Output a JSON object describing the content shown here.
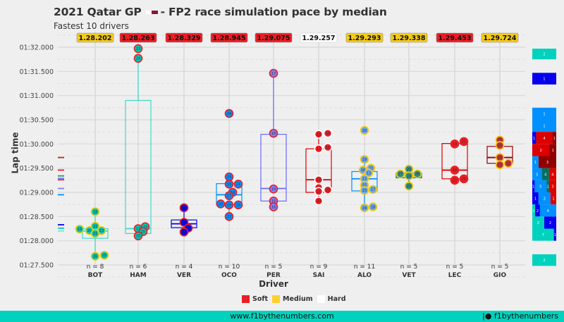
{
  "chart_data": {
    "type": "box",
    "title": "2021 Qatar GP",
    "title_suffix": "- FP2 race simulation pace by median",
    "subtitle": "Fastest 10 drivers",
    "xlabel": "Driver",
    "ylabel": "Lap time",
    "ylim": [
      87.5,
      92.0
    ],
    "yticks": [
      {
        "value": 92.0,
        "label": "01:32.000"
      },
      {
        "value": 91.5,
        "label": "01:31.500"
      },
      {
        "value": 91.0,
        "label": "01:31.000"
      },
      {
        "value": 90.5,
        "label": "01:30.500"
      },
      {
        "value": 90.0,
        "label": "01:30.000"
      },
      {
        "value": 89.5,
        "label": "01:29.500"
      },
      {
        "value": 89.0,
        "label": "01:29.000"
      },
      {
        "value": 88.5,
        "label": "01:28.500"
      },
      {
        "value": 88.0,
        "label": "01:28.000"
      },
      {
        "value": 87.5,
        "label": "01:27.500"
      }
    ],
    "legend": [
      {
        "label": "Soft",
        "color": "#ed1c24"
      },
      {
        "label": "Medium",
        "color": "#ffd12e"
      },
      {
        "label": "Hard",
        "color": "#ffffff"
      }
    ],
    "legend_position": "bottom",
    "drivers": [
      {
        "name": "BOT",
        "n": "n = 8",
        "median_label": "1.28.202",
        "compound": "Medium",
        "team_color": "#00d2be",
        "box": {
          "q1": 88.05,
          "median": 88.2,
          "q3": 88.25,
          "lo": 87.7,
          "hi": 88.6
        },
        "laps": [
          {
            "lap": "18",
            "t": 88.6,
            "dx": 0
          },
          {
            "lap": "19",
            "t": 88.24,
            "dx": -22
          },
          {
            "lap": "20",
            "t": 88.21,
            "dx": -8
          },
          {
            "lap": "22",
            "t": 88.3,
            "dx": 0
          },
          {
            "lap": "23",
            "t": 88.21,
            "dx": 9
          },
          {
            "lap": "21",
            "t": 88.15,
            "dx": 0
          },
          {
            "lap": "26",
            "t": 87.68,
            "dx": 0
          },
          {
            "lap": "25",
            "t": 87.7,
            "dx": 13
          }
        ]
      },
      {
        "name": "HAM",
        "n": "n = 6",
        "median_label": "1.28.263",
        "compound": "Soft",
        "team_color": "#00d2be",
        "box": {
          "q1": 88.15,
          "median": 88.25,
          "q3": 90.9,
          "lo": 88.08,
          "hi": 91.75
        },
        "laps": [
          {
            "lap": "23",
            "t": 91.97,
            "dx": 0
          },
          {
            "lap": "24",
            "t": 91.77,
            "dx": 0
          },
          {
            "lap": "22",
            "t": 88.25,
            "dx": 0
          },
          {
            "lap": "19",
            "t": 88.29,
            "dx": 10
          },
          {
            "lap": "25",
            "t": 88.19,
            "dx": 7
          },
          {
            "lap": "20",
            "t": 88.1,
            "dx": 0
          }
        ]
      },
      {
        "name": "VER",
        "n": "n = 4",
        "median_label": "1.28.329",
        "compound": "Soft",
        "team_color": "#0600ef",
        "box": {
          "q1": 88.27,
          "median": 88.35,
          "q3": 88.43,
          "lo": 88.18,
          "hi": 88.68
        },
        "laps": [
          {
            "lap": "19",
            "t": 88.68,
            "dx": 0
          },
          {
            "lap": "15",
            "t": 88.38,
            "dx": 0
          },
          {
            "lap": "25",
            "t": 88.26,
            "dx": 6
          },
          {
            "lap": "18",
            "t": 88.18,
            "dx": 0
          }
        ]
      },
      {
        "name": "OCO",
        "n": "n = 10",
        "median_label": "1.28.945",
        "compound": "Soft",
        "team_color": "#0090ff",
        "box": {
          "q1": 88.74,
          "median": 88.95,
          "q3": 89.18,
          "lo": 88.5,
          "hi": 89.3
        },
        "laps": [
          {
            "lap": "24",
            "t": 90.63,
            "dx": 0
          },
          {
            "lap": "23",
            "t": 89.32,
            "dx": 0
          },
          {
            "lap": "15",
            "t": 89.17,
            "dx": 0
          },
          {
            "lap": "21",
            "t": 89.17,
            "dx": 13
          },
          {
            "lap": "18",
            "t": 89.0,
            "dx": 5
          },
          {
            "lap": "17",
            "t": 88.93,
            "dx": 0
          },
          {
            "lap": "20",
            "t": 88.76,
            "dx": -12
          },
          {
            "lap": "19",
            "t": 88.74,
            "dx": 0
          },
          {
            "lap": "16",
            "t": 88.74,
            "dx": 13
          },
          {
            "lap": "22",
            "t": 88.5,
            "dx": 0
          }
        ]
      },
      {
        "name": "PER",
        "n": "n = 5",
        "median_label": "1.29.075",
        "compound": "Soft",
        "team_color": "#0600ef",
        "box": {
          "q1": 88.82,
          "median": 89.08,
          "q3": 90.2,
          "lo": 88.7,
          "hi": 91.46
        },
        "laps": [
          {
            "lap": "17",
            "t": 91.46,
            "dx": 0
          },
          {
            "lap": "18",
            "t": 90.22,
            "dx": 0
          },
          {
            "lap": "19",
            "t": 89.07,
            "dx": 0
          },
          {
            "lap": "15",
            "t": 88.82,
            "dx": 0
          },
          {
            "lap": "16",
            "t": 88.7,
            "dx": 0
          }
        ]
      },
      {
        "name": "SAI",
        "n": "n = 9",
        "median_label": "1.29.257",
        "compound": "Hard",
        "team_color": "#dc0000",
        "box": {
          "q1": 89.0,
          "median": 89.26,
          "q3": 89.9,
          "lo": 88.82,
          "hi": 90.2
        },
        "laps": [
          {
            "lap": "18",
            "t": 90.2,
            "dx": 0
          },
          {
            "lap": "16",
            "t": 90.22,
            "dx": 13
          },
          {
            "lap": "17",
            "t": 89.9,
            "dx": 0
          },
          {
            "lap": "19",
            "t": 89.93,
            "dx": 13
          },
          {
            "lap": "22",
            "t": 89.26,
            "dx": 0
          },
          {
            "lap": "24",
            "t": 89.1,
            "dx": 0
          },
          {
            "lap": "21",
            "t": 89.02,
            "dx": 0
          },
          {
            "lap": "23",
            "t": 89.05,
            "dx": 13
          },
          {
            "lap": "20",
            "t": 88.82,
            "dx": 0
          }
        ]
      },
      {
        "name": "ALO",
        "n": "n = 11",
        "median_label": "1.29.293",
        "compound": "Medium",
        "team_color": "#0090ff",
        "box": {
          "q1": 89.03,
          "median": 89.28,
          "q3": 89.43,
          "lo": 88.68,
          "hi": 89.68
        },
        "laps": [
          {
            "lap": "20",
            "t": 90.28,
            "dx": 0
          },
          {
            "lap": "19",
            "t": 89.68,
            "dx": 0
          },
          {
            "lap": "22",
            "t": 89.5,
            "dx": 9
          },
          {
            "lap": "16",
            "t": 89.46,
            "dx": -2
          },
          {
            "lap": "13",
            "t": 89.4,
            "dx": 6
          },
          {
            "lap": "12",
            "t": 89.28,
            "dx": 0
          },
          {
            "lap": "15",
            "t": 89.15,
            "dx": 0
          },
          {
            "lap": "23",
            "t": 89.04,
            "dx": 0
          },
          {
            "lap": "17",
            "t": 89.06,
            "dx": 12
          },
          {
            "lap": "24",
            "t": 88.68,
            "dx": 0
          },
          {
            "lap": "18",
            "t": 88.7,
            "dx": 12
          }
        ]
      },
      {
        "name": "VET",
        "n": "n = 5",
        "median_label": "1.29.338",
        "compound": "Medium",
        "team_color": "#006f62",
        "box": {
          "q1": 89.3,
          "median": 89.34,
          "q3": 89.4,
          "lo": 89.13,
          "hi": 89.48
        },
        "laps": [
          {
            "lap": "25",
            "t": 89.48,
            "dx": 0
          },
          {
            "lap": "27",
            "t": 89.38,
            "dx": -12
          },
          {
            "lap": "24",
            "t": 89.34,
            "dx": 0
          },
          {
            "lap": "26",
            "t": 89.38,
            "dx": 12
          },
          {
            "lap": "23",
            "t": 89.13,
            "dx": 0
          }
        ]
      },
      {
        "name": "LEC",
        "n": "n = 5",
        "median_label": "1.29.453",
        "compound": "Soft",
        "team_color": "#dc0000",
        "box": {
          "q1": 89.28,
          "median": 89.46,
          "q3": 90.01,
          "lo": 89.22,
          "hi": 90.05
        },
        "laps": [
          {
            "lap": "19",
            "t": 90.0,
            "dx": 0
          },
          {
            "lap": "21",
            "t": 90.05,
            "dx": 13
          },
          {
            "lap": "18",
            "t": 89.46,
            "dx": 0
          },
          {
            "lap": "22",
            "t": 89.25,
            "dx": 0
          },
          {
            "lap": "20",
            "t": 89.28,
            "dx": 13
          }
        ]
      },
      {
        "name": "GIO",
        "n": "n = 5",
        "median_label": "1.29.724",
        "compound": "Medium",
        "team_color": "#900000",
        "box": {
          "q1": 89.6,
          "median": 89.72,
          "q3": 89.95,
          "lo": 89.55,
          "hi": 90.08
        },
        "laps": [
          {
            "lap": "19",
            "t": 90.08,
            "dx": 0
          },
          {
            "lap": "21",
            "t": 89.97,
            "dx": 0
          },
          {
            "lap": "20",
            "t": 89.72,
            "dx": 0
          },
          {
            "lap": "23",
            "t": 89.57,
            "dx": 0
          },
          {
            "lap": "22",
            "t": 89.6,
            "dx": 12
          }
        ]
      }
    ],
    "side_markers": [
      {
        "t": 89.72,
        "color": "#c02030"
      },
      {
        "t": 89.46,
        "color": "#ed1c24"
      },
      {
        "t": 89.34,
        "color": "#358c75"
      },
      {
        "t": 89.29,
        "color": "#7f7fff"
      },
      {
        "t": 89.26,
        "color": "#ed1c24"
      },
      {
        "t": 89.08,
        "color": "#7f7fff"
      },
      {
        "t": 88.95,
        "color": "#0090ff"
      },
      {
        "t": 88.33,
        "color": "#0600ef"
      },
      {
        "t": 88.26,
        "color": "#00d2be"
      },
      {
        "t": 88.2,
        "color": "#7fe8de"
      }
    ],
    "histogram": [
      {
        "t0": 91.97,
        "t1": 91.75,
        "cells": [
          {
            "w": 1,
            "color": "#00d2be",
            "label": "2"
          }
        ]
      },
      {
        "t0": 91.47,
        "t1": 91.23,
        "cells": [
          {
            "w": 1,
            "color": "#0600ef",
            "label": "1"
          }
        ]
      },
      {
        "t0": 90.75,
        "t1": 90.5,
        "cells": [
          {
            "w": 1,
            "color": "#0090ff",
            "label": "1"
          }
        ]
      },
      {
        "t0": 90.5,
        "t1": 90.25,
        "cells": [
          {
            "w": 1,
            "color": "#0090ff",
            "label": "1"
          }
        ]
      },
      {
        "t0": 90.25,
        "t1": 90.0,
        "cells": [
          {
            "w": 0.16,
            "color": "#0600ef",
            "label": "1"
          },
          {
            "w": 0.68,
            "color": "#dc0000",
            "label": "4"
          },
          {
            "w": 0.16,
            "color": "#900000",
            "label": "1"
          }
        ]
      },
      {
        "t0": 90.0,
        "t1": 89.75,
        "cells": [
          {
            "w": 0.72,
            "color": "#dc0000",
            "label": "2"
          },
          {
            "w": 0.28,
            "color": "#900000",
            "label": "1"
          }
        ]
      },
      {
        "t0": 89.75,
        "t1": 89.5,
        "cells": [
          {
            "w": 0.26,
            "color": "#0090ff",
            "label": "1"
          },
          {
            "w": 0.74,
            "color": "#900000",
            "label": "3"
          }
        ]
      },
      {
        "t0": 89.5,
        "t1": 89.25,
        "cells": [
          {
            "w": 0.4,
            "color": "#0090ff",
            "label": "5"
          },
          {
            "w": 0.3,
            "color": "#006f62",
            "label": "4"
          },
          {
            "w": 0.3,
            "color": "#dc0000",
            "label": "4"
          }
        ]
      },
      {
        "t0": 89.25,
        "t1": 89.0,
        "cells": [
          {
            "w": 0.1,
            "color": "#0600ef",
            "label": "1"
          },
          {
            "w": 0.5,
            "color": "#0090ff",
            "label": "5"
          },
          {
            "w": 0.1,
            "color": "#006f62",
            "label": "1"
          },
          {
            "w": 0.3,
            "color": "#dc0000",
            "label": "3"
          }
        ]
      },
      {
        "t0": 89.0,
        "t1": 88.75,
        "cells": [
          {
            "w": 0.26,
            "color": "#0600ef",
            "label": "1"
          },
          {
            "w": 0.5,
            "color": "#0090ff",
            "label": "2"
          },
          {
            "w": 0.24,
            "color": "#dc0000",
            "label": "1"
          }
        ]
      },
      {
        "t0": 88.75,
        "t1": 88.5,
        "cells": [
          {
            "w": 0.12,
            "color": "#00d2be",
            "label": "1"
          },
          {
            "w": 0.2,
            "color": "#0600ef",
            "label": "2"
          },
          {
            "w": 0.68,
            "color": "#0090ff",
            "label": "6"
          }
        ]
      },
      {
        "t0": 88.5,
        "t1": 88.25,
        "cells": [
          {
            "w": 0.5,
            "color": "#00d2be",
            "label": "2"
          },
          {
            "w": 0.5,
            "color": "#0600ef",
            "label": "2"
          }
        ]
      },
      {
        "t0": 88.25,
        "t1": 88.0,
        "cells": [
          {
            "w": 0.9,
            "color": "#00d2be",
            "label": "7"
          },
          {
            "w": 0.1,
            "color": "#0600ef",
            "label": "1"
          }
        ]
      },
      {
        "t0": 87.72,
        "t1": 87.48,
        "cells": [
          {
            "w": 1,
            "color": "#00d2be",
            "label": "2"
          }
        ]
      }
    ]
  },
  "footer": {
    "url": "www.f1bythenumbers.com",
    "handle": "f1bythenumbers"
  },
  "compound_colors": {
    "Soft": "#ed1c24",
    "Medium": "#f5cc17",
    "Hard": "#ffffff"
  }
}
